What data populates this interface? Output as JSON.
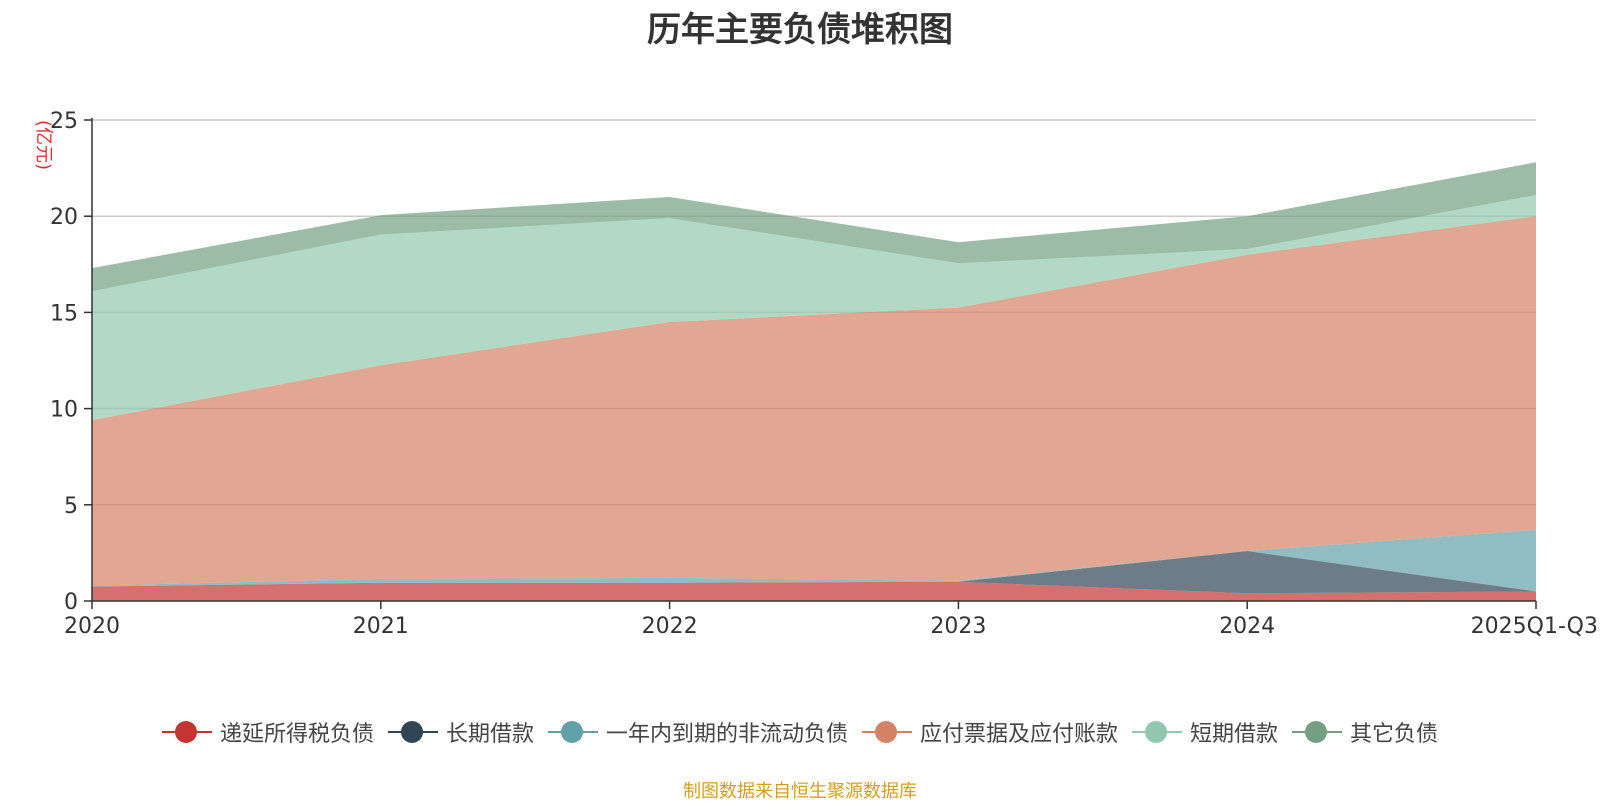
{
  "chart_data": {
    "type": "area",
    "stacked": true,
    "title": "历年主要负债堆积图",
    "ylabel": "(亿元)",
    "xlabel": "",
    "ylim": [
      0,
      25
    ],
    "yticks": [
      0,
      5,
      10,
      15,
      20,
      25
    ],
    "categories": [
      "2020",
      "2021",
      "2022",
      "2023",
      "2024",
      "2025Q1-Q3"
    ],
    "series": [
      {
        "name": "递延所得税负债",
        "color": "#c23531",
        "values": [
          0.75,
          0.95,
          0.95,
          1.0,
          0.4,
          0.5
        ]
      },
      {
        "name": "长期借款",
        "color": "#2f4554",
        "values": [
          0.0,
          0.0,
          0.0,
          0.0,
          2.2,
          0.0
        ]
      },
      {
        "name": "一年内到期的非流动负债",
        "color": "#61a0a8",
        "values": [
          0.05,
          0.2,
          0.25,
          0.05,
          0.0,
          3.2
        ]
      },
      {
        "name": "应付票据及应付账款",
        "color": "#d48265",
        "values": [
          8.6,
          11.1,
          13.3,
          14.2,
          15.4,
          16.3
        ]
      },
      {
        "name": "短期借款",
        "color": "#91c7ae",
        "values": [
          6.7,
          6.8,
          5.4,
          2.3,
          0.3,
          1.1
        ]
      },
      {
        "name": "其它负债",
        "color": "#749f83",
        "values": [
          1.2,
          1.0,
          1.1,
          1.1,
          1.7,
          1.7
        ]
      }
    ]
  },
  "source_note": "制图数据来自恒生聚源数据库"
}
